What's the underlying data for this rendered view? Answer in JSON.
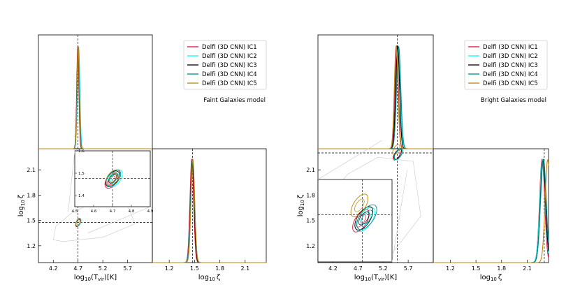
{
  "chart_data": [
    {
      "type": "corner",
      "name": "faint",
      "title": "Faint Galaxies model",
      "params": {
        "x": {
          "label_base": "log",
          "label_sub": "10",
          "label_rest": "(T",
          "label_sub2": "vir",
          "label_end": ")[K]",
          "ticks": [
            4.2,
            4.7,
            5.2,
            5.7
          ],
          "tick_labels": [
            "4.2",
            "4.7",
            "5.2",
            "5.7"
          ],
          "range": [
            3.9,
            6.2
          ],
          "true_value": 4.7
        },
        "y": {
          "label_base": "log",
          "label_sub": "10",
          "label_greek": "ζ",
          "ticks": [
            1.2,
            1.5,
            1.8,
            2.1
          ],
          "tick_labels": [
            "1.2",
            "1.5",
            "1.8",
            "2.1"
          ],
          "range": [
            1.0,
            2.35
          ],
          "true_value": 1.477
        }
      },
      "series": [
        {
          "name": "Delfi (3D CNN) IC1",
          "color": "#dc143c",
          "x_mean": 4.695,
          "x_sigma": 0.022,
          "y_mean": 1.468,
          "y_sigma": 0.022,
          "rho": 0.5
        },
        {
          "name": "Delfi (3D CNN) IC2",
          "color": "#00ffff",
          "x_mean": 4.712,
          "x_sigma": 0.025,
          "y_mean": 1.477,
          "y_sigma": 0.024,
          "rho": 0.5
        },
        {
          "name": "Delfi (3D CNN) IC3",
          "color": "#000000",
          "x_mean": 4.7,
          "x_sigma": 0.023,
          "y_mean": 1.475,
          "y_sigma": 0.022,
          "rho": 0.5
        },
        {
          "name": "Delfi (3D CNN) IC4",
          "color": "#008b8b",
          "x_mean": 4.705,
          "x_sigma": 0.024,
          "y_mean": 1.478,
          "y_sigma": 0.023,
          "rho": 0.5
        },
        {
          "name": "Delfi (3D CNN) IC5",
          "color": "#b8860b",
          "x_mean": 4.702,
          "x_sigma": 0.023,
          "y_mean": 1.48,
          "y_sigma": 0.022,
          "rho": 0.5
        }
      ],
      "inset": {
        "x_ticks": [
          "4.5",
          "4.6",
          "4.7",
          "4.8",
          "4.9"
        ],
        "x_range": [
          4.5,
          4.9
        ],
        "y_ticks": [
          "1.4",
          "1.5",
          "1.6"
        ],
        "y_range": [
          1.35,
          1.6
        ]
      }
    },
    {
      "type": "corner",
      "name": "bright",
      "title": "Bright Galaxies model",
      "params": {
        "x": {
          "label_base": "log",
          "label_sub": "10",
          "label_rest": "(T",
          "label_sub2": "vir",
          "label_end": ")[K]",
          "ticks": [
            4.2,
            4.7,
            5.2,
            5.7
          ],
          "tick_labels": [
            "4.2",
            "4.7",
            "5.2",
            "5.7"
          ],
          "range": [
            3.9,
            6.2
          ],
          "true_value": 5.48
        },
        "y": {
          "label_base": "log",
          "label_sub": "10",
          "label_greek": "ζ",
          "ticks": [
            1.2,
            1.5,
            1.8,
            2.1
          ],
          "tick_labels": [
            "1.2",
            "1.5",
            "1.8",
            "2.1"
          ],
          "range": [
            1.0,
            2.35
          ],
          "true_value": 2.3
        }
      },
      "series": [
        {
          "name": "Delfi (3D CNN) IC1",
          "color": "#dc143c",
          "x_mean": 5.47,
          "x_sigma": 0.035,
          "y_mean": 2.275,
          "y_sigma": 0.03,
          "rho": 0.6
        },
        {
          "name": "Delfi (3D CNN) IC2",
          "color": "#00ffff",
          "x_mean": 5.5,
          "x_sigma": 0.04,
          "y_mean": 2.28,
          "y_sigma": 0.032,
          "rho": 0.6
        },
        {
          "name": "Delfi (3D CNN) IC3",
          "color": "#000000",
          "x_mean": 5.49,
          "x_sigma": 0.038,
          "y_mean": 2.285,
          "y_sigma": 0.031,
          "rho": 0.6
        },
        {
          "name": "Delfi (3D CNN) IC4",
          "color": "#008b8b",
          "x_mean": 5.51,
          "x_sigma": 0.042,
          "y_mean": 2.29,
          "y_sigma": 0.033,
          "rho": 0.6
        },
        {
          "name": "Delfi (3D CNN) IC5",
          "color": "#b8860b",
          "x_mean": 5.46,
          "x_sigma": 0.036,
          "y_mean": 2.34,
          "y_sigma": 0.03,
          "rho": 0.6
        }
      ]
    }
  ]
}
